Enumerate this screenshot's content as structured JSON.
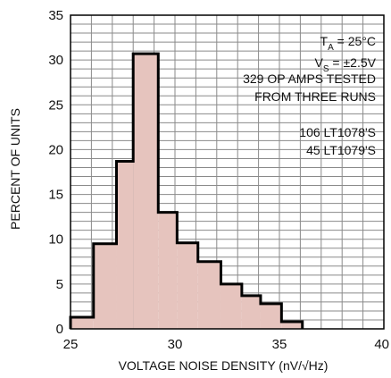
{
  "chart_data": {
    "type": "bar",
    "xlabel": "VOLTAGE NOISE DENSITY (nV/√Hz)",
    "ylabel": "PERCENT OF UNITS",
    "xlim": [
      25,
      40
    ],
    "ylim": [
      0,
      35
    ],
    "x_ticks": [
      25,
      30,
      35,
      40
    ],
    "y_ticks": [
      0,
      5,
      10,
      15,
      20,
      25,
      30,
      35
    ],
    "grid": true,
    "bin_edges": [
      25,
      26.1,
      27.2,
      28.0,
      29.2,
      30.1,
      31.1,
      32.2,
      33.2,
      34.1,
      35.1,
      36.1
    ],
    "values": [
      1.3,
      9.5,
      18.7,
      30.7,
      13.0,
      9.6,
      7.5,
      5.0,
      3.7,
      2.8,
      0.8
    ],
    "fill_color": "#e6c4be",
    "edge_color": "#000000",
    "annotations": {
      "ta": "TA = 25°C",
      "vs": "VS = ±2.5V",
      "tested": "329 OP AMPS TESTED",
      "runs": "FROM THREE RUNS",
      "lt1078": "106 LT1078'S",
      "lt1079": "45 LT1079'S"
    }
  }
}
